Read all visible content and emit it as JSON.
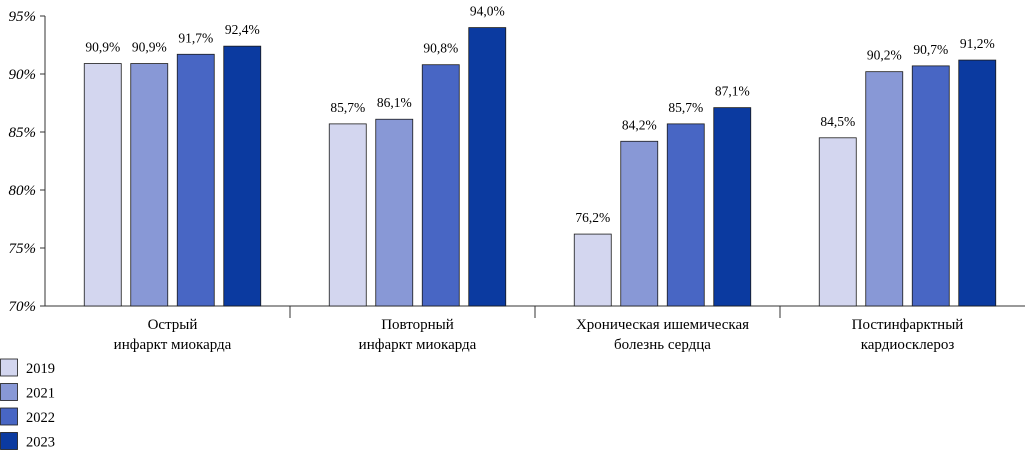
{
  "chart_data": {
    "type": "bar",
    "title": "",
    "xlabel": "",
    "ylabel": "",
    "ylim": [
      70,
      95
    ],
    "yticks": [
      70,
      75,
      80,
      85,
      90,
      95
    ],
    "ytick_labels": [
      "70%",
      "75%",
      "80%",
      "85%",
      "90%",
      "95%"
    ],
    "grid": false,
    "legend_position": "bottom-left",
    "categories": [
      [
        "Острый",
        "инфаркт миокарда"
      ],
      [
        "Повторный",
        "инфаркт миокарда"
      ],
      [
        "Хроническая ишемическая",
        "болезнь сердца"
      ],
      [
        "Постинфарктный",
        "кардиосклероз"
      ]
    ],
    "series": [
      {
        "name": "2019",
        "color": "#d3d6ef",
        "values": [
          90.9,
          85.7,
          76.2,
          84.5
        ],
        "labels": [
          "90,9%",
          "85,7%",
          "76,2%",
          "84,5%"
        ]
      },
      {
        "name": "2021",
        "color": "#8898d6",
        "values": [
          90.9,
          86.1,
          84.2,
          90.2
        ],
        "labels": [
          "90,9%",
          "86,1%",
          "84,2%",
          "90,2%"
        ]
      },
      {
        "name": "2022",
        "color": "#4866c4",
        "values": [
          91.7,
          90.8,
          85.7,
          90.7
        ],
        "labels": [
          "91,7%",
          "90,8%",
          "85,7%",
          "90,7%"
        ]
      },
      {
        "name": "2023",
        "color": "#0b3aa0",
        "values": [
          92.4,
          94.0,
          87.1,
          91.2
        ],
        "labels": [
          "92,4%",
          "94,0%",
          "87,1%",
          "91,2%"
        ]
      }
    ]
  }
}
